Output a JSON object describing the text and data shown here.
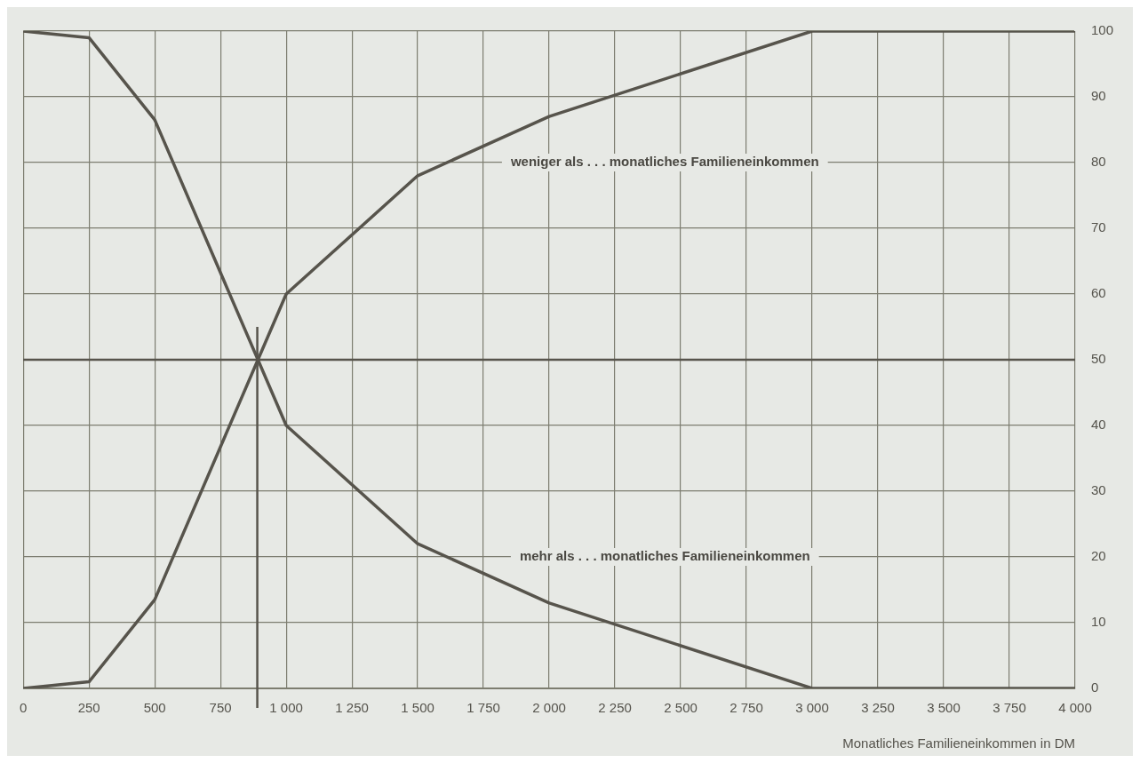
{
  "chart_data": {
    "type": "line",
    "x": [
      0,
      250,
      500,
      1000,
      1500,
      2000,
      3000,
      4000
    ],
    "series": [
      {
        "color": "#57544c",
        "values": [
          0,
          1,
          13.5,
          60,
          78,
          87,
          100,
          100
        ]
      },
      {
        "color": "#57544c",
        "values": [
          100,
          99,
          86.5,
          40,
          22,
          13,
          0,
          0
        ]
      }
    ],
    "xlim": [
      0,
      4000
    ],
    "xticks": [
      0,
      250,
      500,
      750,
      {
        "value": 1000,
        "label": "1 000"
      },
      {
        "value": 1250,
        "label": "1 250"
      },
      {
        "value": 1500,
        "label": "1 500"
      },
      {
        "value": 1750,
        "label": "1 750"
      },
      {
        "value": 2000,
        "label": "2 000"
      },
      {
        "value": 2250,
        "label": "2 250"
      },
      {
        "value": 2500,
        "label": "2 500"
      },
      {
        "value": 2750,
        "label": "2 750"
      },
      {
        "value": 3000,
        "label": "3 000"
      },
      {
        "value": 3250,
        "label": "3 250"
      },
      {
        "value": 3500,
        "label": "3 500"
      },
      {
        "value": 3750,
        "label": "3 750"
      },
      {
        "value": 4000,
        "label": "4 000"
      }
    ],
    "ylim": [
      0,
      100
    ],
    "yticks": [
      0,
      10,
      20,
      30,
      40,
      50,
      60,
      70,
      80,
      90,
      100
    ],
    "xlabel": "Monatliches Familieneinkommen in DM",
    "annotations": [
      "weniger als . . . monatliches Familieneinkommen",
      "mehr als . . . monatliches Familieneinkommen"
    ],
    "ref_lines": [
      {
        "axis": "y",
        "value": 50,
        "color": "#57544c"
      },
      {
        "axis": "x",
        "value": 890,
        "color": "#57544c"
      }
    ],
    "grid": true,
    "legend": false,
    "marker": "none",
    "line_style": "solid"
  }
}
